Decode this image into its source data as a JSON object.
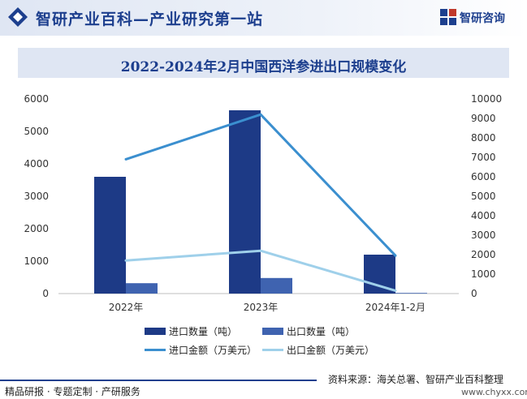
{
  "header": {
    "title": "智研产业百科—产业研究第一站",
    "logo_text": "智研咨询"
  },
  "chart_data": {
    "type": "bar",
    "title": "2022-2024年2月中国西洋参进出口规模变化",
    "categories": [
      "2022年",
      "2023年",
      "2024年1-2月"
    ],
    "y_left": {
      "ticks": [
        0,
        1000,
        2000,
        3000,
        4000,
        5000,
        6000
      ],
      "ylim": [
        0,
        6000
      ]
    },
    "y_right": {
      "ticks": [
        0,
        1000,
        2000,
        3000,
        4000,
        5000,
        6000,
        7000,
        8000,
        9000,
        10000
      ],
      "ylim": [
        0,
        10000
      ]
    },
    "grid": false,
    "legend_placement": "bottom",
    "series": [
      {
        "name": "进口数量（吨）",
        "type": "bar",
        "axis": "left",
        "color": "#1d3a86",
        "values": [
          3600,
          5650,
          1200
        ]
      },
      {
        "name": "出口数量（吨）",
        "type": "bar",
        "axis": "left",
        "color": "#3f63b0",
        "values": [
          320,
          480,
          20
        ]
      },
      {
        "name": "进口金额（万美元）",
        "type": "line",
        "axis": "right",
        "color": "#3b8fcf",
        "values": [
          6900,
          9200,
          1950
        ]
      },
      {
        "name": "出口金额（万美元）",
        "type": "line",
        "axis": "right",
        "color": "#9fd0ea",
        "values": [
          1700,
          2200,
          150
        ]
      }
    ]
  },
  "footer": {
    "left_text": "精品研报 · 专题定制 · 产研服务",
    "source": "资料来源：海关总署、智研产业百科整理",
    "url": "www.chyxx.com"
  }
}
